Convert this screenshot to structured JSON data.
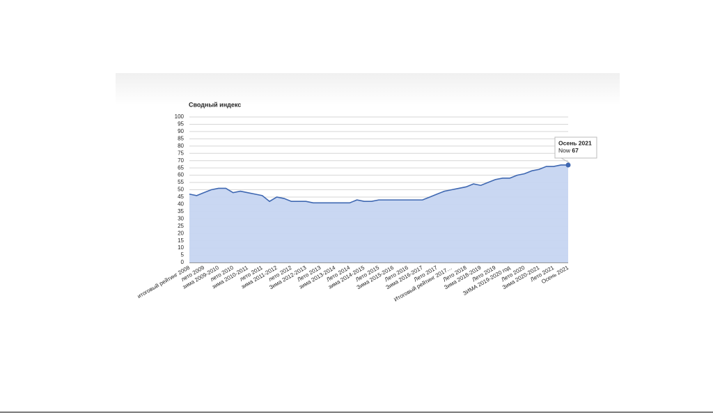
{
  "chart_data": {
    "type": "area",
    "title": "Сводный индекс",
    "categories": [
      "итоговый рейтинг 2008",
      null,
      "лето 2009",
      null,
      "зима 2009-2010",
      null,
      "лето 2010",
      null,
      "зима 2010-2011",
      null,
      "лето 2011",
      null,
      "зима 2011-2012",
      null,
      "лето 2012",
      null,
      "Зима 2012-2013",
      null,
      "Лето 2013",
      null,
      "зима 2013-2014",
      null,
      "Лето 2014",
      null,
      "зима 2014-2015",
      null,
      "Лето 2015",
      null,
      "Зима 2015-2016",
      null,
      "Лето 2016",
      null,
      "Зима 2016-2017",
      null,
      "Лето 2017",
      null,
      "Итоговый рейтинг 2017…",
      null,
      "Лето 2018",
      null,
      "Зима 2018-2019",
      null,
      "Лето 2019",
      null,
      "ЗИМА 2019-2020 год",
      null,
      "Лето 2020",
      null,
      "Зима 2020-2021",
      null,
      "Лето 2021",
      null,
      "Осень 2021"
    ],
    "series": [
      {
        "name": "Now",
        "color": "#3e67b1",
        "fill": "#c6d5f1",
        "values": [
          47,
          46,
          48,
          50,
          51,
          51,
          48,
          49,
          48,
          47,
          46,
          42,
          45,
          44,
          42,
          42,
          42,
          41,
          41,
          41,
          41,
          41,
          41,
          43,
          42,
          42,
          43,
          43,
          43,
          43,
          43,
          43,
          43,
          45,
          47,
          49,
          50,
          51,
          52,
          54,
          53,
          55,
          57,
          58,
          58,
          60,
          61,
          63,
          64,
          66,
          66,
          67,
          67
        ]
      }
    ],
    "ylim": [
      0,
      100
    ],
    "yticks": [
      0,
      5,
      10,
      15,
      20,
      25,
      30,
      35,
      40,
      45,
      50,
      55,
      60,
      65,
      70,
      75,
      80,
      85,
      90,
      95,
      100
    ],
    "grid": true,
    "tooltip": {
      "category": "Осень 2021"
    }
  }
}
